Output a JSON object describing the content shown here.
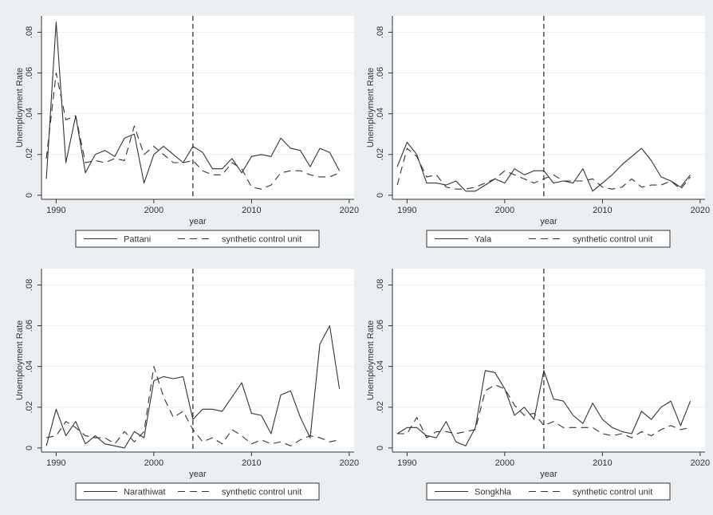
{
  "figure": {
    "background": "#ebeff2",
    "plot_background": "#ffffff",
    "line_color": "#333333",
    "gridline_color": "#eaf0f4"
  },
  "chart_data": [
    {
      "type": "line",
      "xlabel": "year",
      "ylabel": "Unemployment Rate",
      "xticks": [
        "1990",
        "2000",
        "2010",
        "2020"
      ],
      "yticks": [
        "0",
        ".02",
        ".04",
        ".06",
        ".08"
      ],
      "xlim": [
        1988.5,
        2020.5
      ],
      "ylim": [
        -0.002,
        0.088
      ],
      "grid": true,
      "legend_position": "bottom",
      "treatment_year": 2004,
      "x": [
        1989,
        1990,
        1991,
        1992,
        1993,
        1994,
        1995,
        1996,
        1997,
        1998,
        1999,
        2000,
        2001,
        2002,
        2003,
        2004,
        2005,
        2006,
        2007,
        2008,
        2009,
        2010,
        2011,
        2012,
        2013,
        2014,
        2015,
        2016,
        2017,
        2018,
        2019
      ],
      "series": [
        {
          "name": "Pattani",
          "style": "solid",
          "values": [
            0.008,
            0.085,
            0.016,
            0.039,
            0.011,
            0.02,
            0.022,
            0.019,
            0.028,
            0.03,
            0.006,
            0.02,
            0.024,
            0.02,
            0.016,
            0.024,
            0.021,
            0.013,
            0.013,
            0.018,
            0.011,
            0.019,
            0.02,
            0.019,
            0.028,
            0.023,
            0.022,
            0.014,
            0.023,
            0.021,
            0.012
          ]
        },
        {
          "name": "synthetic control unit",
          "style": "dash",
          "values": [
            0.018,
            0.06,
            0.037,
            0.039,
            0.016,
            0.017,
            0.016,
            0.018,
            0.017,
            0.034,
            0.02,
            0.024,
            0.02,
            0.016,
            0.016,
            0.017,
            0.012,
            0.01,
            0.01,
            0.016,
            0.013,
            0.004,
            0.003,
            0.005,
            0.011,
            0.012,
            0.012,
            0.01,
            0.009,
            0.009,
            0.011
          ]
        }
      ]
    },
    {
      "type": "line",
      "xlabel": "year",
      "ylabel": "Unemployment Rate",
      "xticks": [
        "1990",
        "2000",
        "2010",
        "2020"
      ],
      "yticks": [
        "0",
        ".02",
        ".04",
        ".06",
        ".08"
      ],
      "xlim": [
        1988.5,
        2020.5
      ],
      "ylim": [
        -0.002,
        0.088
      ],
      "grid": true,
      "legend_position": "bottom",
      "treatment_year": 2004,
      "x": [
        1989,
        1990,
        1991,
        1992,
        1993,
        1994,
        1995,
        1996,
        1997,
        1998,
        1999,
        2000,
        2001,
        2002,
        2003,
        2004,
        2005,
        2006,
        2007,
        2008,
        2009,
        2010,
        2011,
        2012,
        2013,
        2014,
        2015,
        2016,
        2017,
        2018,
        2019
      ],
      "series": [
        {
          "name": "Yala",
          "style": "solid",
          "values": [
            0.014,
            0.026,
            0.02,
            0.006,
            0.006,
            0.005,
            0.007,
            0.002,
            0.002,
            0.005,
            0.008,
            0.006,
            0.013,
            0.01,
            0.012,
            0.012,
            0.006,
            0.007,
            0.006,
            0.013,
            0.002,
            0.006,
            0.01,
            0.015,
            0.019,
            0.023,
            0.017,
            0.009,
            0.007,
            0.004,
            0.01
          ]
        },
        {
          "name": "synthetic control unit",
          "style": "dash",
          "values": [
            0.005,
            0.023,
            0.019,
            0.009,
            0.01,
            0.004,
            0.003,
            0.003,
            0.004,
            0.006,
            0.008,
            0.012,
            0.01,
            0.008,
            0.006,
            0.008,
            0.01,
            0.007,
            0.007,
            0.007,
            0.008,
            0.004,
            0.003,
            0.004,
            0.008,
            0.004,
            0.005,
            0.005,
            0.007,
            0.003,
            0.009
          ]
        }
      ]
    },
    {
      "type": "line",
      "xlabel": "year",
      "ylabel": "Unemployment Rate",
      "xticks": [
        "1990",
        "2000",
        "2010",
        "2020"
      ],
      "yticks": [
        "0",
        ".02",
        ".04",
        ".06",
        ".08"
      ],
      "xlim": [
        1988.5,
        2020.5
      ],
      "ylim": [
        -0.002,
        0.088
      ],
      "grid": true,
      "legend_position": "bottom",
      "treatment_year": 2004,
      "x": [
        1989,
        1990,
        1991,
        1992,
        1993,
        1994,
        1995,
        1996,
        1997,
        1998,
        1999,
        2000,
        2001,
        2002,
        2003,
        2004,
        2005,
        2006,
        2007,
        2008,
        2009,
        2010,
        2011,
        2012,
        2013,
        2014,
        2015,
        2016,
        2017,
        2018,
        2019
      ],
      "series": [
        {
          "name": "Narathiwat",
          "style": "solid",
          "values": [
            0.001,
            0.019,
            0.006,
            0.013,
            0.002,
            0.006,
            0.002,
            0.001,
            0.0,
            0.008,
            0.005,
            0.033,
            0.035,
            0.034,
            0.035,
            0.014,
            0.019,
            0.019,
            0.018,
            0.025,
            0.032,
            0.017,
            0.016,
            0.007,
            0.026,
            0.028,
            0.015,
            0.005,
            0.051,
            0.06,
            0.029
          ]
        },
        {
          "name": "synthetic control unit",
          "style": "dash",
          "values": [
            0.005,
            0.006,
            0.013,
            0.01,
            0.006,
            0.005,
            0.005,
            0.002,
            0.008,
            0.003,
            0.008,
            0.04,
            0.025,
            0.015,
            0.018,
            0.009,
            0.003,
            0.005,
            0.002,
            0.009,
            0.006,
            0.002,
            0.004,
            0.002,
            0.003,
            0.001,
            0.004,
            0.006,
            0.005,
            0.003,
            0.004
          ]
        }
      ]
    },
    {
      "type": "line",
      "xlabel": "year",
      "ylabel": "Unemployment Rate",
      "xticks": [
        "1990",
        "2000",
        "2010",
        "2020"
      ],
      "yticks": [
        "0",
        ".02",
        ".04",
        ".06",
        ".08"
      ],
      "xlim": [
        1988.5,
        2020.5
      ],
      "ylim": [
        -0.002,
        0.088
      ],
      "grid": true,
      "legend_position": "bottom",
      "treatment_year": 2004,
      "x": [
        1989,
        1990,
        1991,
        1992,
        1993,
        1994,
        1995,
        1996,
        1997,
        1998,
        1999,
        2000,
        2001,
        2002,
        2003,
        2004,
        2005,
        2006,
        2007,
        2008,
        2009,
        2010,
        2011,
        2012,
        2013,
        2014,
        2015,
        2016,
        2017,
        2018,
        2019
      ],
      "series": [
        {
          "name": "Songkhla",
          "style": "solid",
          "values": [
            0.007,
            0.01,
            0.01,
            0.006,
            0.005,
            0.013,
            0.003,
            0.001,
            0.01,
            0.038,
            0.037,
            0.029,
            0.016,
            0.02,
            0.014,
            0.038,
            0.024,
            0.023,
            0.016,
            0.012,
            0.022,
            0.014,
            0.01,
            0.008,
            0.007,
            0.018,
            0.014,
            0.02,
            0.023,
            0.011,
            0.023
          ]
        },
        {
          "name": "synthetic control unit",
          "style": "dash",
          "values": [
            0.007,
            0.007,
            0.015,
            0.005,
            0.008,
            0.008,
            0.007,
            0.008,
            0.009,
            0.028,
            0.031,
            0.029,
            0.021,
            0.016,
            0.017,
            0.011,
            0.013,
            0.01,
            0.01,
            0.01,
            0.01,
            0.007,
            0.006,
            0.007,
            0.005,
            0.008,
            0.006,
            0.009,
            0.011,
            0.009,
            0.01
          ]
        }
      ]
    }
  ]
}
